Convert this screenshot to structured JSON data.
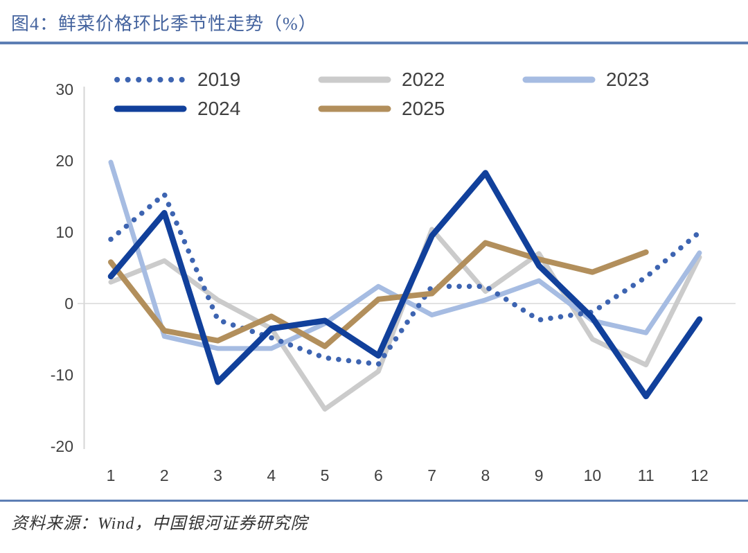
{
  "header": {
    "title": "图4：鲜菜价格环比季节性走势（%）"
  },
  "footer": {
    "source": "资料来源：Wind，中国银河证券研究院"
  },
  "colors": {
    "title_text": "#44639E",
    "rule_accent": "#5D7EB4",
    "axis_line": "#D6D6D6",
    "zero_gridline": "#D9D9D9",
    "tick_text": "#3F3F3F",
    "legend_text": "#404040",
    "source_text": "#333333"
  },
  "chart_data": {
    "type": "line",
    "categories": [
      "1",
      "2",
      "3",
      "4",
      "5",
      "6",
      "7",
      "8",
      "9",
      "10",
      "11",
      "12"
    ],
    "series": [
      {
        "name": "2019",
        "style": "dotted",
        "color": "#3D64B1",
        "width": 7.5,
        "z": 3,
        "values": [
          9.0,
          15.3,
          -2.3,
          -4.8,
          -7.6,
          -8.5,
          2.4,
          2.4,
          -2.3,
          -1.2,
          3.7,
          10.0
        ]
      },
      {
        "name": "2022",
        "style": "solid",
        "color": "#CBCBCB",
        "width": 7,
        "z": 1,
        "values": [
          3.0,
          6.0,
          0.5,
          -3.5,
          -14.8,
          -9.5,
          10.4,
          1.7,
          7.0,
          -5.0,
          -8.6,
          6.5
        ]
      },
      {
        "name": "2023",
        "style": "solid",
        "color": "#A6BCE2",
        "width": 7,
        "z": 2,
        "values": [
          19.8,
          -4.6,
          -6.3,
          -6.3,
          -2.8,
          2.4,
          -1.6,
          0.5,
          3.2,
          -2.4,
          -4.1,
          7.1
        ]
      },
      {
        "name": "2024",
        "style": "solid",
        "color": "#11409B",
        "width": 8.5,
        "z": 5,
        "values": [
          3.8,
          12.7,
          -11.0,
          -3.5,
          -2.4,
          -7.3,
          9.5,
          18.3,
          5.3,
          -2.0,
          -13.0,
          -2.2
        ]
      },
      {
        "name": "2025",
        "style": "solid",
        "color": "#B28F5C",
        "width": 8,
        "z": 4,
        "values": [
          5.8,
          -3.8,
          -5.2,
          -1.8,
          -6.0,
          0.6,
          1.4,
          8.5,
          6.2,
          4.4,
          7.2
        ]
      }
    ],
    "title": "鲜菜价格环比季节性走势（%）",
    "xlabel": "",
    "ylabel": "",
    "ylim": [
      -20,
      30
    ],
    "yticks": [
      30,
      20,
      10,
      0,
      -10,
      -20
    ],
    "grid": "zero-line-only",
    "legend_position": "top-two-rows"
  }
}
